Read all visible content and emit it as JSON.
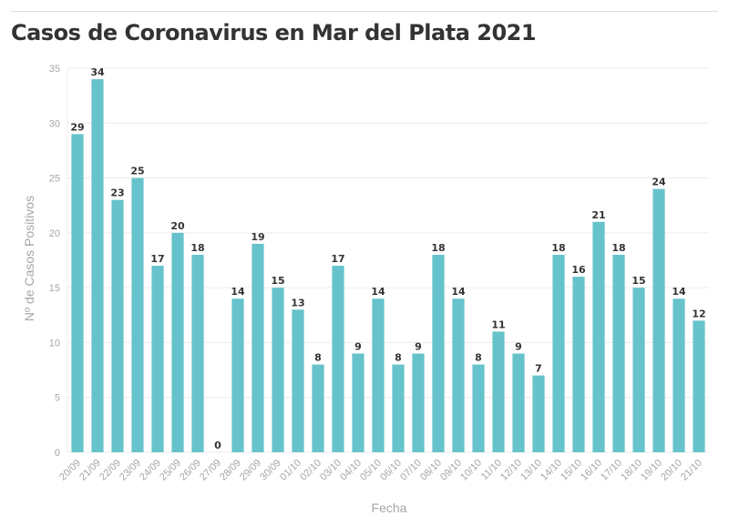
{
  "title": "Casos de Coronavirus en Mar del Plata 2021",
  "colors": {
    "bar": "#67c3cb",
    "grid": "#ececec",
    "axis_text": "#a6a6a6",
    "label_text": "#333333"
  },
  "chart_data": {
    "type": "bar",
    "title": "Casos de Coronavirus en Mar del Plata 2021",
    "xlabel": "Fecha",
    "ylabel": "Nº de Casos Positivos",
    "ylim": [
      0,
      35
    ],
    "yticks": [
      0,
      5,
      10,
      15,
      20,
      25,
      30,
      35
    ],
    "grid": true,
    "categories": [
      "20/09",
      "21/09",
      "22/09",
      "23/09",
      "24/09",
      "25/09",
      "26/09",
      "27/09",
      "28/09",
      "29/09",
      "30/09",
      "01/10",
      "02/10",
      "03/10",
      "04/10",
      "05/10",
      "06/10",
      "07/10",
      "08/10",
      "09/10",
      "10/10",
      "11/10",
      "12/10",
      "13/10",
      "14/10",
      "15/10",
      "16/10",
      "17/10",
      "18/10",
      "19/10",
      "20/10",
      "21/10"
    ],
    "values": [
      29,
      34,
      23,
      25,
      17,
      20,
      18,
      0,
      14,
      19,
      15,
      13,
      8,
      17,
      9,
      14,
      8,
      9,
      18,
      14,
      8,
      11,
      9,
      7,
      18,
      16,
      21,
      18,
      15,
      24,
      14,
      12
    ]
  }
}
